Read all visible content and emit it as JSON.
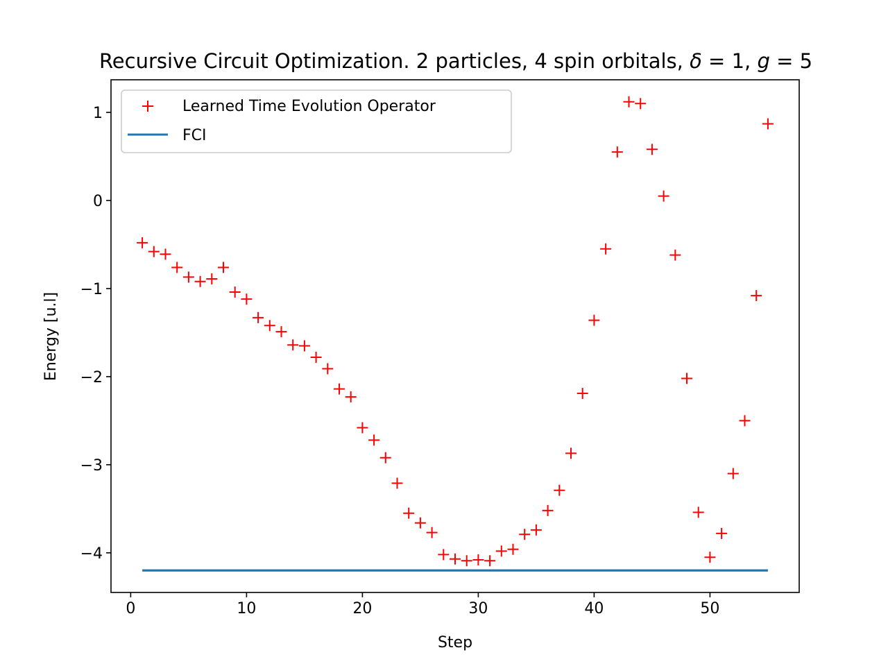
{
  "chart_data": {
    "type": "scatter",
    "title": "Recursive Circuit Optimization. 2 particles, 4 spin orbitals, δ = 1, g = 5",
    "title_parts": {
      "prefix": "Recursive Circuit Optimization. 2 particles, 4 spin orbitals, ",
      "delta_symbol": "δ",
      "delta_eq": " = 1, ",
      "g_symbol": "g",
      "g_eq": " = 5"
    },
    "xlabel": "Step",
    "ylabel": "Energy [u.l]",
    "xlim": [
      -1.7,
      57.7
    ],
    "ylim": [
      -4.45,
      1.37
    ],
    "x_ticks": [
      0,
      10,
      20,
      30,
      40,
      50
    ],
    "y_ticks": [
      1,
      0,
      -1,
      -2,
      -3,
      -4
    ],
    "x_tick_labels": [
      "0",
      "10",
      "20",
      "30",
      "40",
      "50"
    ],
    "y_tick_labels": [
      "1",
      "0",
      "−1",
      "−2",
      "−3",
      "−4"
    ],
    "grid": false,
    "legend_position": "upper-left",
    "series": [
      {
        "name": "Learned Time Evolution Operator",
        "marker": "+",
        "color": "#ff0000",
        "x": [
          1,
          2,
          3,
          4,
          5,
          6,
          7,
          8,
          9,
          10,
          11,
          12,
          13,
          14,
          15,
          16,
          17,
          18,
          19,
          20,
          21,
          22,
          23,
          24,
          25,
          26,
          27,
          28,
          29,
          30,
          31,
          32,
          33,
          34,
          35,
          36,
          37,
          38,
          39,
          40,
          41,
          42,
          43,
          44,
          45,
          46,
          47,
          48,
          49,
          50,
          51,
          52,
          53,
          54,
          55
        ],
        "y": [
          -0.48,
          -0.58,
          -0.61,
          -0.76,
          -0.87,
          -0.92,
          -0.89,
          -0.76,
          -1.04,
          -1.12,
          -1.33,
          -1.42,
          -1.49,
          -1.64,
          -1.65,
          -1.78,
          -1.91,
          -2.14,
          -2.23,
          -2.58,
          -2.72,
          -2.92,
          -3.21,
          -3.55,
          -3.66,
          -3.77,
          -4.02,
          -4.07,
          -4.09,
          -4.08,
          -4.09,
          -3.98,
          -3.96,
          -3.79,
          -3.74,
          -3.52,
          -3.29,
          -2.87,
          -2.19,
          -1.36,
          -0.55,
          0.55,
          1.12,
          1.1,
          0.58,
          0.05,
          -0.62,
          -2.02,
          -3.54,
          -4.05,
          -3.78,
          -3.1,
          -2.5,
          -1.08,
          0.87
        ]
      },
      {
        "name": "FCI",
        "marker": "line",
        "color": "#1f77b4",
        "x": [
          1,
          55
        ],
        "y": [
          -4.2,
          -4.2
        ]
      }
    ]
  }
}
